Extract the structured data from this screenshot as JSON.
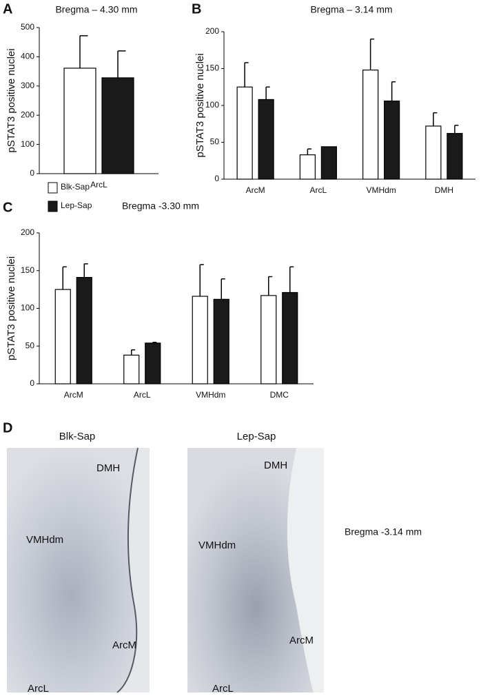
{
  "chart_data": [
    {
      "type": "bar",
      "panel_label": "A",
      "title": "Bregma – 4.30 mm",
      "y_label": "pSTAT3 positive nuclei",
      "categories": [
        "ArcL"
      ],
      "series": [
        {
          "color": "#ffffff",
          "values": [
            361
          ],
          "errors": [
            111
          ]
        },
        {
          "color": "#1a1a1a",
          "values": [
            328
          ],
          "errors": [
            92
          ]
        }
      ],
      "ylim": [
        0,
        500
      ],
      "yticks": [
        0,
        100,
        200,
        300,
        400,
        500
      ]
    },
    {
      "type": "bar",
      "panel_label": "B",
      "title": "Bregma – 3.14 mm",
      "y_label": "pSTAT3 positive nuclei",
      "categories": [
        "ArcM",
        "ArcL",
        "VMHdm",
        "DMH"
      ],
      "series": [
        {
          "color": "#ffffff",
          "values": [
            125,
            33,
            148,
            72
          ],
          "errors": [
            33,
            8,
            42,
            18
          ]
        },
        {
          "color": "#1a1a1a",
          "values": [
            108,
            44,
            106,
            62
          ],
          "errors": [
            17,
            null,
            26,
            11
          ]
        }
      ],
      "ylim": [
        0,
        200
      ],
      "yticks": [
        0,
        50,
        100,
        150,
        200
      ]
    },
    {
      "type": "bar",
      "panel_label": "C",
      "title": "Bregma -3.30 mm",
      "y_label": "pSTAT3 positive nuclei",
      "categories": [
        "ArcM",
        "ArcL",
        "VMHdm",
        "DMC"
      ],
      "series": [
        {
          "name": "Blk-Sap",
          "color": "#ffffff",
          "values": [
            125,
            38,
            116,
            117
          ],
          "errors": [
            30,
            7,
            42,
            25
          ]
        },
        {
          "name": "Lep-Sap",
          "color": "#1a1a1a",
          "values": [
            141,
            54,
            112,
            121
          ],
          "errors": [
            18,
            1,
            27,
            34
          ]
        }
      ],
      "ylim": [
        0,
        200
      ],
      "yticks": [
        0,
        50,
        100,
        150,
        200
      ]
    }
  ],
  "micrograph": {
    "panel_label": "D",
    "note": "Bregma -3.14 mm",
    "images": [
      {
        "title": "Blk-Sap",
        "labels": [
          "DMH",
          "VMHdm",
          "ArcM",
          "ArcL"
        ]
      },
      {
        "title": "Lep-Sap",
        "labels": [
          "DMH",
          "VMHdm",
          "ArcM",
          "ArcL"
        ]
      }
    ]
  }
}
